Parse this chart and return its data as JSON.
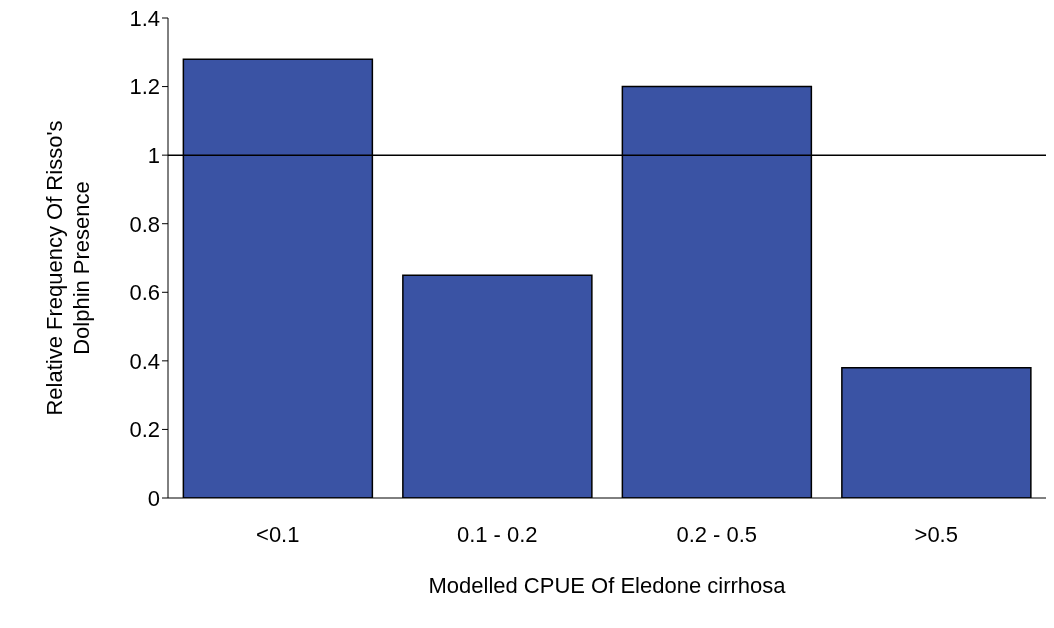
{
  "chart_data": {
    "type": "bar",
    "xlabel": "Modelled CPUE Of Eledone cirrhosa",
    "ylabel": "Relative Frequency Of Risso's Dolphin Presence",
    "categories": [
      "<0.1",
      "0.1 - 0.2",
      "0.2 - 0.5",
      ">0.5"
    ],
    "values": [
      1.28,
      0.65,
      1.2,
      0.38
    ],
    "color": "#3a53a4",
    "ylim": [
      0,
      1.4
    ],
    "yticks": [
      0,
      0.2,
      0.4,
      0.6,
      0.8,
      1,
      1.2,
      1.4
    ],
    "grid": false,
    "legend": false,
    "ref_lines": [
      {
        "axis": "y",
        "value": 1,
        "color": "#000000"
      }
    ]
  }
}
